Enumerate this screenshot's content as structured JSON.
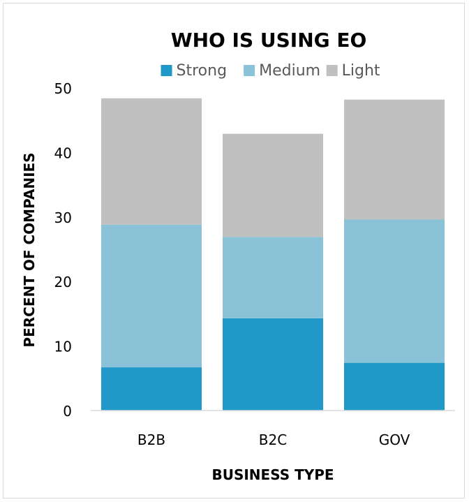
{
  "chart_data": {
    "type": "bar",
    "stacked": true,
    "title": "WHO IS USING EO",
    "xlabel": "BUSINESS TYPE",
    "ylabel": "PERCENT OF COMPANIES",
    "categories": [
      "B2B",
      "B2C",
      "GOV"
    ],
    "series": [
      {
        "name": "Strong",
        "color": "#2098c8",
        "values": [
          6.7,
          14.3,
          7.4
        ]
      },
      {
        "name": "Medium",
        "color": "#8ac3d8",
        "values": [
          22.1,
          12.6,
          22.2
        ]
      },
      {
        "name": "Light",
        "color": "#c0c0c0",
        "values": [
          19.6,
          16.0,
          18.6
        ]
      }
    ],
    "ylim": [
      0,
      50
    ],
    "yticks": [
      0,
      10,
      20,
      30,
      40,
      50
    ],
    "grid": false,
    "legend_position": "top"
  }
}
